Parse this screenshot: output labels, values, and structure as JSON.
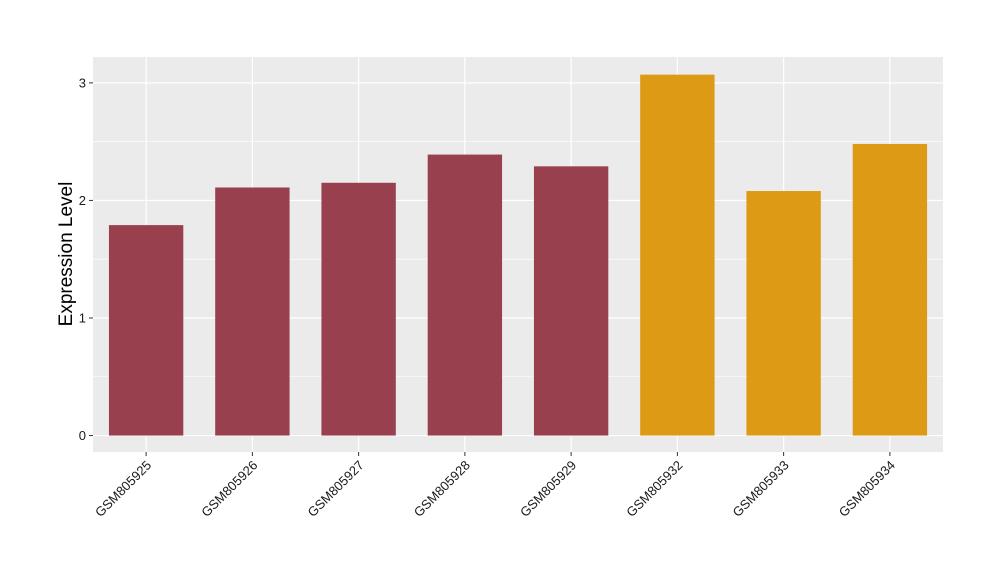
{
  "chart_data": {
    "type": "bar",
    "title": "",
    "xlabel": "",
    "ylabel": "Expression Level",
    "categories": [
      "GSM805925",
      "GSM805926",
      "GSM805927",
      "GSM805928",
      "GSM805929",
      "GSM805932",
      "GSM805933",
      "GSM805934"
    ],
    "values": [
      1.79,
      2.11,
      2.15,
      2.39,
      2.29,
      3.07,
      2.08,
      2.48
    ],
    "bar_colors": [
      "#99404F",
      "#99404F",
      "#99404F",
      "#99404F",
      "#99404F",
      "#DD9A14",
      "#DD9A14",
      "#DD9A14"
    ],
    "ylim": [
      -0.14,
      3.22
    ],
    "yticks": [
      0,
      1,
      2,
      3
    ],
    "grid": true,
    "panel_background": "#EBEBEB",
    "gridline_color": "#FFFFFF"
  }
}
